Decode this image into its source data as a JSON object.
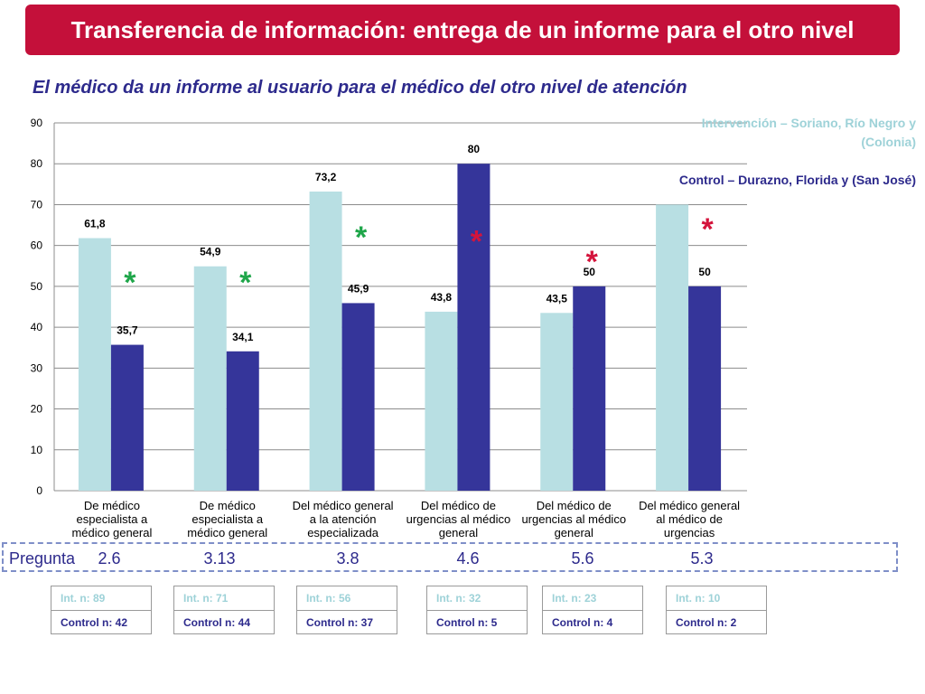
{
  "title": "Transferencia de información: entrega de un informe para el otro nivel",
  "subtitle": "El médico da un informe al usuario para el médico del otro nivel de atención",
  "legend": {
    "intervention": "Intervención – Soriano, Río Negro y (Colonia)",
    "control": "Control – Durazno, Florida y (San José)"
  },
  "colors": {
    "title_bg": "#c4103a",
    "intervention": "#b8dfe3",
    "control": "#35359a",
    "subtitle": "#2d2a8c",
    "asterisk_green": "#1fa64a",
    "asterisk_red": "#d4143c"
  },
  "chart_data": {
    "type": "bar",
    "categories": [
      [
        "De médico",
        "especialista a",
        "médico general"
      ],
      [
        "De médico",
        "especialista a",
        "médico general"
      ],
      [
        "Del médico general",
        "a la atención",
        "especializada"
      ],
      [
        "Del médico de",
        "urgencias al médico",
        "general"
      ],
      [
        "Del médico de",
        "urgencias al médico",
        "general"
      ],
      [
        "Del médico general",
        "al médico de",
        "urgencias"
      ]
    ],
    "series": [
      {
        "name": "Intervención – Soriano, Río Negro y (Colonia)",
        "values": [
          61.8,
          54.9,
          73.2,
          43.8,
          43.5,
          70
        ],
        "labels": [
          "61,8",
          "54,9",
          "73,2",
          "43,8",
          "43,5",
          ""
        ]
      },
      {
        "name": "Control – Durazno, Florida y (San José)",
        "values": [
          35.7,
          34.1,
          45.9,
          80,
          50,
          50
        ],
        "labels": [
          "35,7",
          "34,1",
          "45,9",
          "80",
          "50",
          "50"
        ]
      }
    ],
    "ylim": [
      0,
      90
    ],
    "yticks": [
      0,
      10,
      20,
      30,
      40,
      50,
      60,
      70,
      80,
      90
    ],
    "grid": true,
    "annotations": [
      {
        "text": "*",
        "color": "green",
        "group": 0,
        "value": 52
      },
      {
        "text": "*",
        "color": "green",
        "group": 1,
        "value": 52
      },
      {
        "text": "*",
        "color": "green",
        "group": 2,
        "value": 63
      },
      {
        "text": "*",
        "color": "red",
        "group": 3,
        "value": 62
      },
      {
        "text": "*",
        "color": "red",
        "group": 4,
        "value": 57
      },
      {
        "text": "*",
        "color": "red",
        "group": 5,
        "value": 65
      }
    ]
  },
  "pregunta": {
    "label": "Pregunta",
    "values": [
      "2.6",
      "3.13",
      "3.8",
      "4.6",
      "5.6",
      "5.3"
    ]
  },
  "counts": [
    {
      "int": "Int. n: 89",
      "control": "Control n: 42"
    },
    {
      "int": "Int. n: 71",
      "control": "Control n: 44"
    },
    {
      "int": "Int. n: 56",
      "control": "Control n: 37"
    },
    {
      "int": "Int. n: 32",
      "control": "Control n: 5"
    },
    {
      "int": "Int. n: 23",
      "control": "Control n: 4"
    },
    {
      "int": "Int. n: 10",
      "control": "Control n: 2"
    }
  ]
}
